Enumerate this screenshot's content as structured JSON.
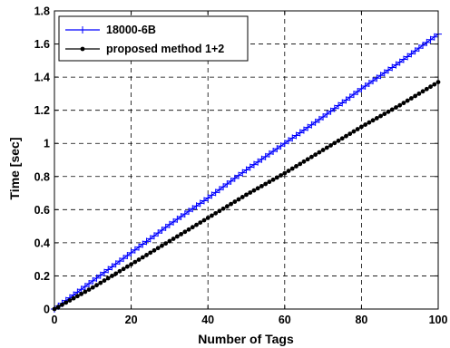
{
  "chart_data": {
    "type": "line",
    "xlabel": "Number of Tags",
    "ylabel": "Time [sec]",
    "xlim": [
      0,
      100
    ],
    "ylim": [
      0,
      1.8
    ],
    "xticks": [
      0,
      20,
      40,
      60,
      80,
      100
    ],
    "xtick_labels": [
      "0",
      "20",
      "40",
      "60",
      "80",
      "100"
    ],
    "yticks": [
      0,
      0.2,
      0.4,
      0.6,
      0.8,
      1.0,
      1.2,
      1.4,
      1.6,
      1.8
    ],
    "ytick_labels": [
      "0",
      "0.2",
      "0.4",
      "0.6",
      "0.8",
      "1",
      "1.2",
      "1.4",
      "1.6",
      "1.8"
    ],
    "grid": true,
    "legend_position": "top-left",
    "x": [
      0,
      10,
      20,
      30,
      40,
      50,
      60,
      70,
      80,
      90,
      100
    ],
    "series": [
      {
        "name": "18000-6B",
        "color": "#0000ff",
        "marker": "plus",
        "values": [
          0,
          0.17,
          0.34,
          0.51,
          0.67,
          0.84,
          1.0,
          1.16,
          1.33,
          1.49,
          1.66
        ]
      },
      {
        "name": "proposed method 1+2",
        "color": "#000000",
        "marker": "dot",
        "values": [
          0,
          0.13,
          0.27,
          0.41,
          0.55,
          0.69,
          0.82,
          0.96,
          1.1,
          1.23,
          1.37
        ]
      }
    ]
  }
}
